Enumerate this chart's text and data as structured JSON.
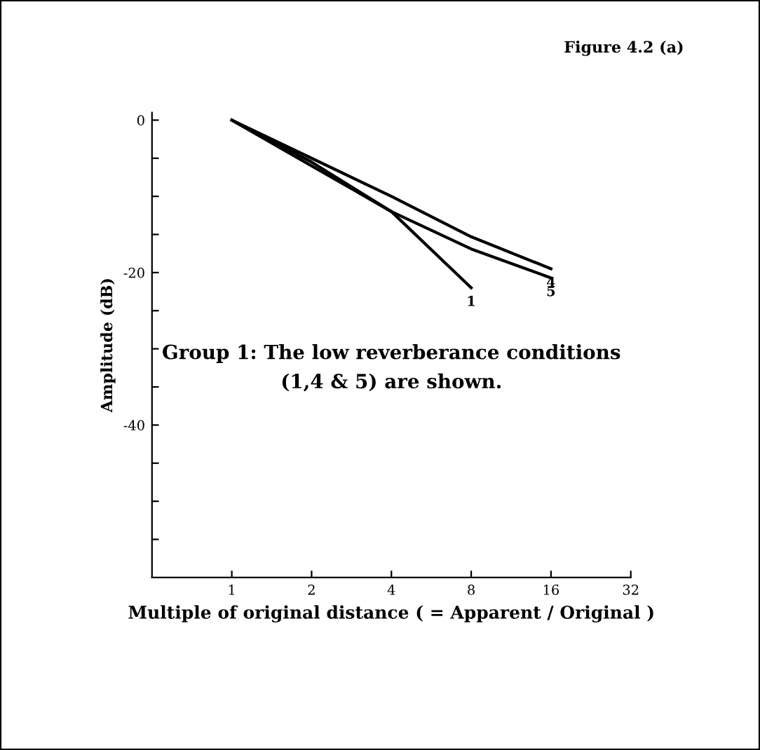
{
  "chart_data": {
    "type": "line",
    "title": "Figure 4.2 (a)",
    "xlabel": "Multiple of original distance ( = Apparent / Original )",
    "ylabel": "Amplitude (dB)",
    "annotations": [
      "Group 1: The low reverberance conditions\n(1,4 & 5) are shown."
    ],
    "series": [
      {
        "name": "1",
        "color": "#000000",
        "x": [
          1,
          2,
          4,
          8
        ],
        "values": [
          0,
          -5.5,
          -12,
          -22
        ]
      },
      {
        "name": "4",
        "color": "#000000",
        "x": [
          1,
          2,
          4,
          8,
          16
        ],
        "values": [
          0,
          -5,
          -10,
          -15.3,
          -19.5
        ]
      },
      {
        "name": "5",
        "color": "#000000",
        "x": [
          1,
          2,
          4,
          8,
          16
        ],
        "values": [
          0,
          -6,
          -12,
          -16.9,
          -20.7
        ]
      }
    ],
    "log": "x",
    "xlim": [
      0.5,
      32
    ],
    "xticks": [
      1,
      2,
      4,
      8,
      16,
      32
    ],
    "ylim": [
      -60,
      1
    ],
    "yticks": [
      {
        "value": -55,
        "label": null
      },
      {
        "value": -50,
        "label": null
      },
      {
        "value": -45,
        "label": null
      },
      -40,
      {
        "value": -35,
        "label": null
      },
      {
        "value": -30,
        "label": null
      },
      {
        "value": -25,
        "label": null
      },
      -20,
      {
        "value": -15,
        "label": null
      },
      {
        "value": -10,
        "label": null
      },
      {
        "value": -5,
        "label": null
      },
      0
    ],
    "grid": false,
    "legend": false,
    "marker": "none",
    "line_style": "solid"
  }
}
